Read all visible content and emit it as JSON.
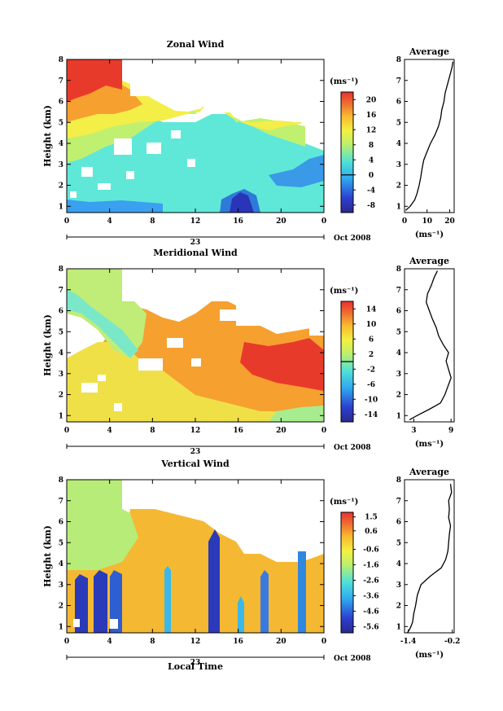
{
  "chart_data": [
    {
      "type": "heatmap",
      "title": "Zonal Wind",
      "ylabel": "Height (km)",
      "xlabel": "",
      "x_ticks": [
        "0",
        "4",
        "8",
        "12",
        "16",
        "20",
        "0"
      ],
      "y_ticks": [
        "1",
        "2",
        "3",
        "4",
        "5",
        "6",
        "7",
        "8"
      ],
      "date_mark": "23",
      "date_label": "Oct 2008",
      "xlim": [
        0,
        24
      ],
      "ylim": [
        0.7,
        8
      ],
      "colorbar": {
        "unit": "(ms⁻¹)",
        "ticks": [
          "20",
          "16",
          "12",
          "8",
          "4",
          "0",
          "-4",
          "-8"
        ],
        "range": [
          -10,
          22
        ],
        "zero_line": 0
      },
      "average_profile": {
        "title": "Average",
        "xlabel": "(ms⁻¹)",
        "x_ticks": [
          "0",
          "10",
          "20"
        ],
        "xlim": [
          0,
          22
        ],
        "height": [
          0.8,
          1.0,
          1.3,
          1.6,
          2.0,
          2.4,
          2.8,
          3.2,
          3.6,
          4.0,
          4.4,
          4.8,
          5.2,
          5.6,
          6.0,
          6.4,
          6.8,
          7.2,
          7.6,
          7.9
        ],
        "value": [
          0.5,
          2.5,
          4.5,
          5.5,
          6.5,
          7.2,
          7.8,
          8.5,
          10.0,
          11.5,
          13.5,
          15.0,
          16.0,
          16.5,
          17.5,
          18.0,
          19.0,
          20.0,
          21.0,
          21.5
        ]
      }
    },
    {
      "type": "heatmap",
      "title": "Meridional Wind",
      "ylabel": "Height (km)",
      "xlabel": "",
      "x_ticks": [
        "0",
        "4",
        "8",
        "12",
        "16",
        "20",
        "0"
      ],
      "y_ticks": [
        "1",
        "2",
        "3",
        "4",
        "5",
        "6",
        "7",
        "8"
      ],
      "date_mark": "23",
      "date_label": "Oct 2008",
      "xlim": [
        0,
        24
      ],
      "ylim": [
        0.7,
        8
      ],
      "colorbar": {
        "unit": "(ms⁻¹)",
        "ticks": [
          "14",
          "10",
          "6",
          "2",
          "-2",
          "-6",
          "-10",
          "-14"
        ],
        "range": [
          -16,
          16
        ],
        "zero_line": 0
      },
      "average_profile": {
        "title": "Average",
        "xlabel": "(ms⁻¹)",
        "x_ticks": [
          "3",
          "9"
        ],
        "xlim": [
          1.5,
          9.5
        ],
        "height": [
          0.8,
          1.0,
          1.3,
          1.6,
          2.0,
          2.4,
          2.8,
          3.2,
          3.6,
          4.0,
          4.4,
          4.8,
          5.2,
          5.6,
          6.0,
          6.4,
          6.8,
          7.2,
          7.6,
          7.9
        ],
        "value": [
          2.3,
          3.5,
          5.5,
          7.3,
          8.0,
          8.5,
          9.0,
          8.6,
          8.2,
          8.6,
          7.7,
          7.0,
          6.6,
          6.0,
          5.5,
          5.0,
          5.2,
          5.8,
          6.3,
          6.8
        ]
      }
    },
    {
      "type": "heatmap",
      "title": "Vertical Wind",
      "ylabel": "Height (km)",
      "xlabel": "Local Time",
      "x_ticks": [
        "0",
        "4",
        "8",
        "12",
        "16",
        "20",
        "0"
      ],
      "y_ticks": [
        "1",
        "2",
        "3",
        "4",
        "5",
        "6",
        "7",
        "8"
      ],
      "date_mark": "23",
      "date_label": "Oct 2008",
      "xlim": [
        0,
        24
      ],
      "ylim": [
        0.7,
        8
      ],
      "colorbar": {
        "unit": "(ms⁻¹)",
        "ticks": [
          "1.5",
          "0.6",
          "-0.6",
          "-1.6",
          "-2.6",
          "-3.6",
          "-4.6",
          "-5.6"
        ],
        "range": [
          -6.0,
          1.8
        ]
      },
      "average_profile": {
        "title": "Average",
        "xlabel": "(ms⁻¹)",
        "x_ticks": [
          "-1.4",
          "-0.2"
        ],
        "xlim": [
          -1.5,
          -0.15
        ],
        "height": [
          0.7,
          0.9,
          1.2,
          1.6,
          2.0,
          2.5,
          3.0,
          3.4,
          3.8,
          4.2,
          4.6,
          5.0,
          5.4,
          5.8,
          6.2,
          6.6,
          7.0,
          7.4,
          7.8
        ],
        "value": [
          -1.42,
          -1.35,
          -1.28,
          -1.25,
          -1.2,
          -1.15,
          -1.05,
          -0.8,
          -0.5,
          -0.38,
          -0.32,
          -0.3,
          -0.28,
          -0.25,
          -0.3,
          -0.28,
          -0.3,
          -0.22,
          -0.25
        ]
      }
    }
  ]
}
